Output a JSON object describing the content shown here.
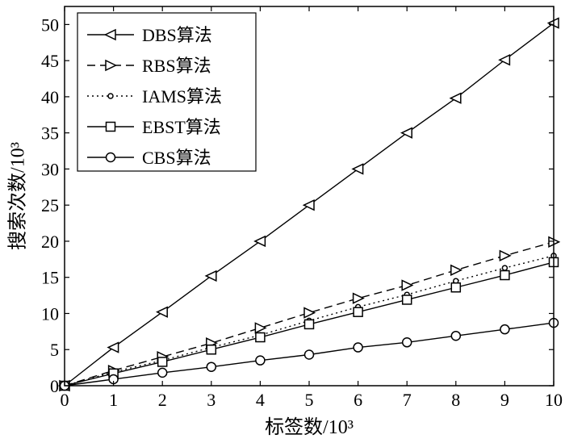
{
  "chart_data": {
    "type": "line",
    "title": "",
    "xlabel": "标签数/10³",
    "ylabel": "搜索次数/10³",
    "xlim": [
      0,
      10
    ],
    "ylim": [
      0,
      52.5
    ],
    "x_ticks": [
      "0",
      "1",
      "2",
      "3",
      "4",
      "5",
      "6",
      "7",
      "8",
      "9",
      "10"
    ],
    "y_ticks": [
      "0",
      "5",
      "10",
      "15",
      "20",
      "25",
      "30",
      "35",
      "40",
      "45",
      "50"
    ],
    "grid": false,
    "legend_position": "top-left",
    "x": [
      0,
      1,
      2,
      3,
      4,
      5,
      6,
      7,
      8,
      9,
      10
    ],
    "series": [
      {
        "name": "DBS算法",
        "marker": "triangle-left",
        "line": "solid",
        "values": [
          0,
          5.3,
          10.2,
          15.2,
          20.0,
          25.0,
          30.0,
          35.0,
          39.8,
          45.1,
          50.2
        ]
      },
      {
        "name": "RBS算法",
        "marker": "triangle-right",
        "line": "dashed",
        "values": [
          0,
          2.1,
          4.0,
          5.9,
          8.0,
          10.1,
          12.1,
          13.9,
          16.0,
          18.0,
          19.9
        ]
      },
      {
        "name": "IAMS算法",
        "marker": "small-circle",
        "line": "dotted",
        "values": [
          0,
          1.9,
          3.5,
          5.3,
          7.0,
          9.0,
          10.9,
          12.6,
          14.5,
          16.3,
          18.0
        ]
      },
      {
        "name": "EBST算法",
        "marker": "square",
        "line": "solid",
        "values": [
          0,
          1.7,
          3.3,
          5.0,
          6.7,
          8.5,
          10.2,
          11.9,
          13.6,
          15.3,
          17.1
        ]
      },
      {
        "name": "CBS算法",
        "marker": "circle",
        "line": "solid",
        "values": [
          0,
          0.9,
          1.8,
          2.6,
          3.5,
          4.3,
          5.3,
          6.0,
          6.9,
          7.8,
          8.7
        ]
      }
    ]
  }
}
